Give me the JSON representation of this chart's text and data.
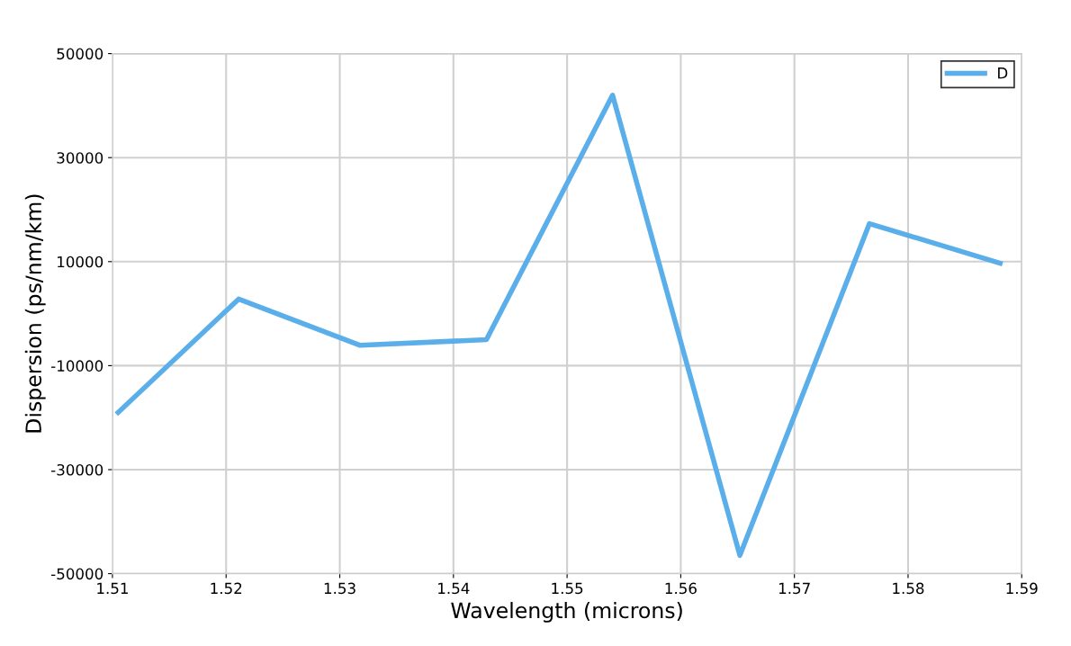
{
  "chart_data": {
    "type": "line",
    "xlabel": "Wavelength (microns)",
    "ylabel": "Dispersion (ps/nm/km)",
    "x": [
      1.5105,
      1.5211,
      1.5318,
      1.5429,
      1.554,
      1.5652,
      1.5766,
      1.5881
    ],
    "series": [
      {
        "name": "D",
        "color": "#5aaeea",
        "values": [
          -19000,
          2800,
          -6100,
          -5000,
          42000,
          -46500,
          17300,
          9700
        ]
      }
    ],
    "xlim": [
      1.51,
      1.59
    ],
    "xticks": [
      1.51,
      1.52,
      1.53,
      1.54,
      1.55,
      1.56,
      1.57,
      1.58,
      1.59
    ],
    "ylim": [
      -50000,
      50000
    ],
    "yticks": [
      -50000,
      -30000,
      -10000,
      10000,
      30000,
      50000
    ],
    "grid": true,
    "legend": "top right",
    "marker": "none",
    "line_style": "solid"
  }
}
